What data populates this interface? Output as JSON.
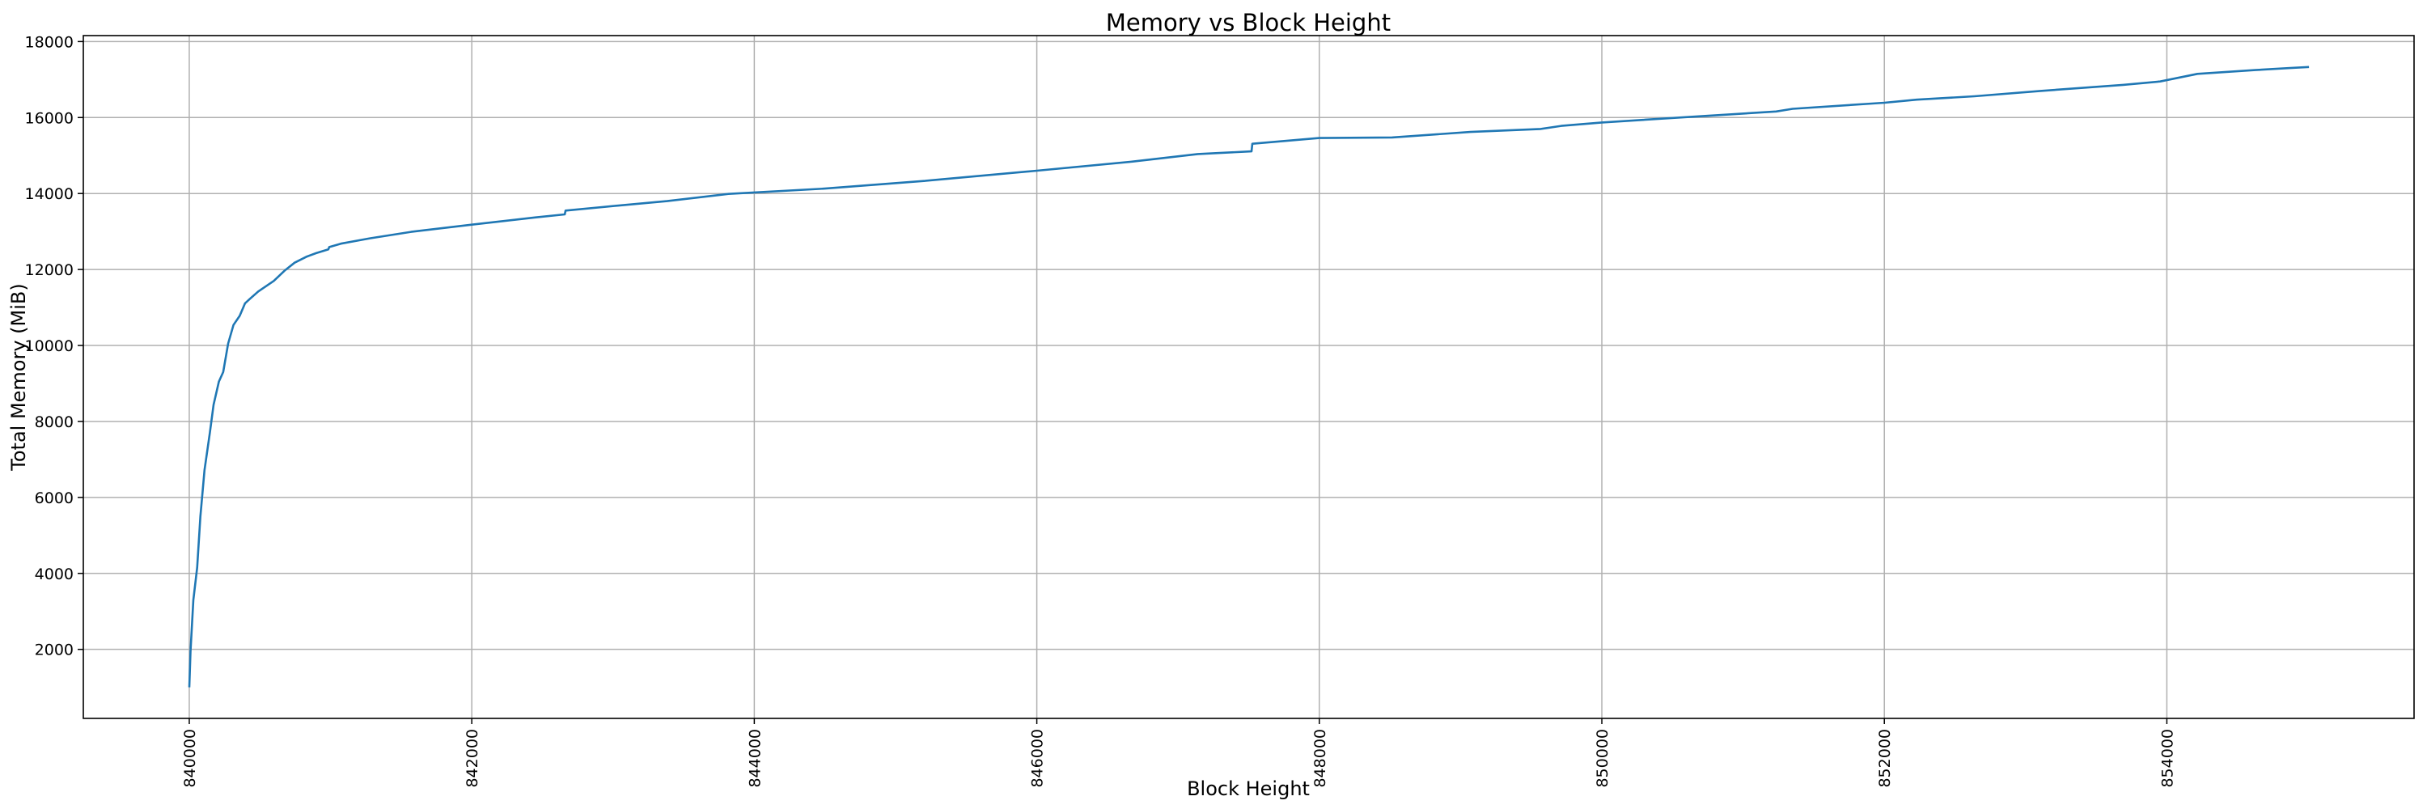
{
  "chart_data": {
    "type": "line",
    "title": "Memory vs Block Height",
    "xlabel": "Block Height",
    "ylabel": "Total Memory (MiB)",
    "xlim": [
      839250,
      855750
    ],
    "ylim": [
      183,
      18157
    ],
    "xticks": [
      840000,
      842000,
      844000,
      846000,
      848000,
      850000,
      852000,
      854000
    ],
    "xtick_labels": [
      "840000",
      "842000",
      "844000",
      "846000",
      "848000",
      "850000",
      "852000",
      "854000"
    ],
    "yticks": [
      2000,
      4000,
      6000,
      8000,
      10000,
      12000,
      14000,
      16000,
      18000
    ],
    "ytick_labels": [
      "2000",
      "4000",
      "6000",
      "8000",
      "10000",
      "12000",
      "14000",
      "16000",
      "18000"
    ],
    "grid": true,
    "line_color": "#1f77b4",
    "series": [
      {
        "x": [
          840000,
          840009,
          840029,
          840056,
          840079,
          840108,
          840146,
          840172,
          840210,
          840240,
          840275,
          840313,
          840357,
          840395,
          840430,
          840488,
          840599,
          840678,
          840746,
          840833,
          840898,
          840985,
          840991,
          841073,
          841278,
          841570,
          842000,
          842447,
          842658,
          842664,
          843032,
          843383,
          843816,
          844500,
          845200,
          846000,
          846673,
          847140,
          847520,
          847526,
          848000,
          848515,
          849070,
          849567,
          849713,
          850000,
          850766,
          851234,
          851351,
          852000,
          852228,
          852637,
          853105,
          853690,
          853953,
          854216,
          854626,
          854860,
          855006
        ],
        "y": [
          1000,
          1950,
          3300,
          4150,
          5500,
          6720,
          7700,
          8440,
          9050,
          9300,
          10050,
          10540,
          10780,
          11110,
          11230,
          11420,
          11700,
          11980,
          12180,
          12340,
          12430,
          12530,
          12590,
          12680,
          12820,
          12990,
          13180,
          13370,
          13450,
          13550,
          13680,
          13800,
          13990,
          14130,
          14330,
          14600,
          14840,
          15040,
          15110,
          15310,
          15460,
          15475,
          15620,
          15700,
          15780,
          15870,
          16050,
          16160,
          16230,
          16390,
          16470,
          16560,
          16700,
          16860,
          16950,
          17150,
          17250,
          17300,
          17330
        ]
      }
    ]
  }
}
